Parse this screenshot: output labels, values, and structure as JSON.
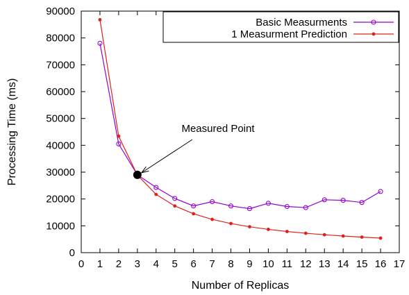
{
  "chart_data": {
    "type": "line",
    "xlabel": "Number of Replicas",
    "ylabel": "Processing Time (ms)",
    "xlim": [
      0,
      17
    ],
    "ylim": [
      0,
      90000
    ],
    "xticks": [
      0,
      1,
      2,
      3,
      4,
      5,
      6,
      7,
      8,
      9,
      10,
      11,
      12,
      13,
      14,
      15,
      16,
      17
    ],
    "yticks": [
      0,
      10000,
      20000,
      30000,
      40000,
      50000,
      60000,
      70000,
      80000,
      90000
    ],
    "grid": false,
    "legend_position": "top-right",
    "series": [
      {
        "name": "Basic Measurments",
        "color": "#9400D3",
        "marker": "open-circle",
        "x": [
          1,
          2,
          3,
          4,
          5,
          6,
          7,
          8,
          9,
          10,
          11,
          12,
          13,
          14,
          15,
          16
        ],
        "y": [
          78000,
          40500,
          29000,
          24300,
          20200,
          17400,
          19000,
          17400,
          16400,
          18400,
          17200,
          16800,
          19700,
          19500,
          18700,
          22800
        ]
      },
      {
        "name": "1 Measurment Prediction",
        "color": "#E0201B",
        "marker": "filled-dot",
        "x": [
          1,
          2,
          3,
          4,
          5,
          6,
          7,
          8,
          9,
          10,
          11,
          12,
          13,
          14,
          15,
          16
        ],
        "y": [
          86800,
          43400,
          28900,
          21700,
          17400,
          14500,
          12400,
          10850,
          9650,
          8680,
          7890,
          7230,
          6680,
          6200,
          5790,
          5430
        ]
      }
    ],
    "annotations": [
      {
        "text": "Measured Point",
        "x": 3,
        "y": 29000
      }
    ]
  }
}
